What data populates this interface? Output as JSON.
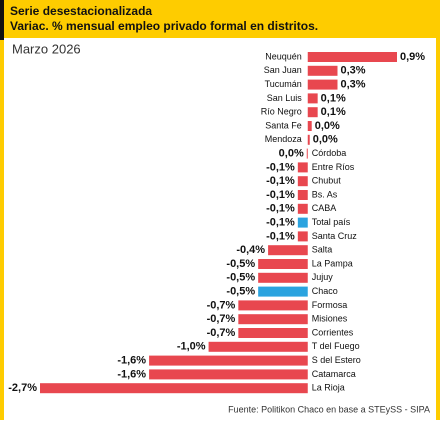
{
  "chart_data": {
    "type": "bar",
    "orientation": "horizontal",
    "title": "Serie desestacionalizada",
    "subtitle": "Variac. % mensual empleo privado formal en distritos.",
    "period": "Marzo 2026",
    "source": "Fuente: Politikon Chaco en base a STEySS - SIPA",
    "categories": [
      "Neuquén",
      "San Juan",
      "Tucumán",
      "San Luis",
      "Río Negro",
      "Santa Fe",
      "Mendoza",
      "Córdoba",
      "Entre Ríos",
      "Chubut",
      "Bs. As",
      "CABA",
      "Total país",
      "Santa Cruz",
      "Salta",
      "La Pampa",
      "Jujuy",
      "Chaco",
      "Formosa",
      "Misiones",
      "Corrientes",
      "T del Fuego",
      "S del Estero",
      "Catamarca",
      "La Rioja"
    ],
    "values": [
      0.9,
      0.3,
      0.3,
      0.1,
      0.1,
      0.04,
      0.02,
      -0.01,
      -0.1,
      -0.1,
      -0.1,
      -0.1,
      -0.1,
      -0.1,
      -0.4,
      -0.5,
      -0.5,
      -0.5,
      -0.7,
      -0.7,
      -0.7,
      -1.0,
      -1.6,
      -1.6,
      -2.7
    ],
    "value_labels": [
      "0,9%",
      "0,3%",
      "0,3%",
      "0,1%",
      "0,1%",
      "0,0%",
      "0,0%",
      "0,0%",
      "-0,1%",
      "-0,1%",
      "-0,1%",
      "-0,1%",
      "-0,1%",
      "-0,1%",
      "-0,4%",
      "-0,5%",
      "-0,5%",
      "-0,5%",
      "-0,7%",
      "-0,7%",
      "-0,7%",
      "-1,0%",
      "-1,6%",
      "-1,6%",
      "-2,7%"
    ],
    "colors": [
      "#e8474f",
      "#e8474f",
      "#e8474f",
      "#e8474f",
      "#e8474f",
      "#e8474f",
      "#e8474f",
      "#e8474f",
      "#e8474f",
      "#e8474f",
      "#e8474f",
      "#e8474f",
      "#2aa3df",
      "#e8474f",
      "#e8474f",
      "#e8474f",
      "#e8474f",
      "#2aa3df",
      "#e8474f",
      "#e8474f",
      "#e8474f",
      "#e8474f",
      "#e8474f",
      "#e8474f",
      "#e8474f"
    ]
  }
}
